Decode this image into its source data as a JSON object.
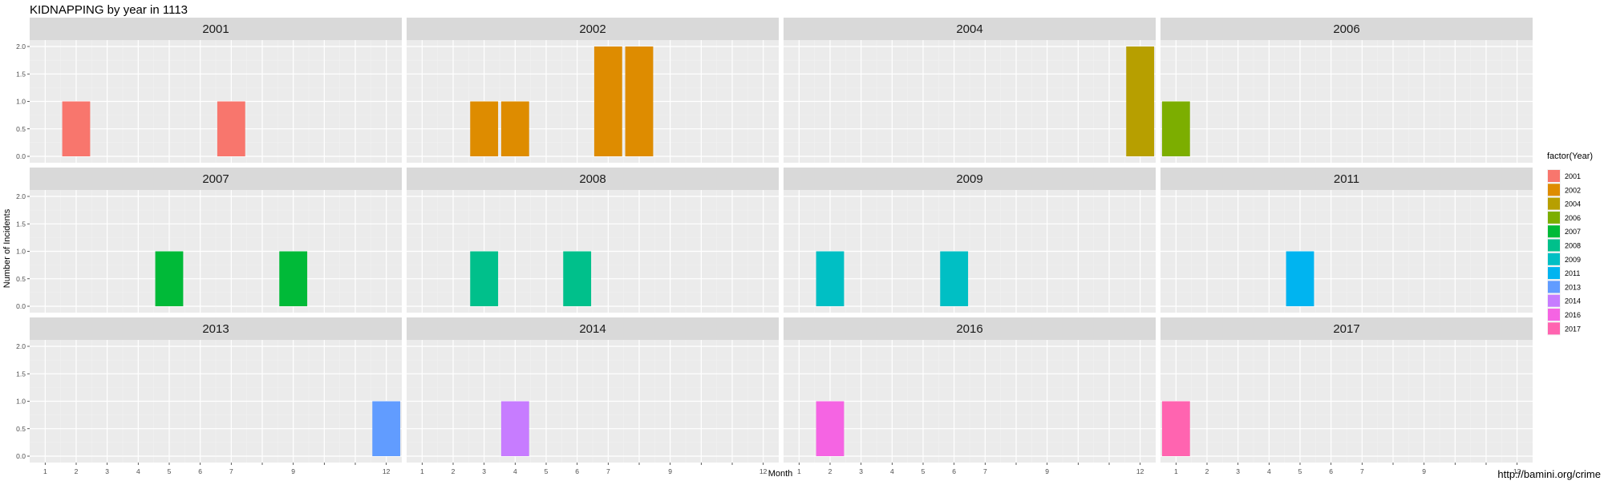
{
  "chart_data": {
    "type": "bar",
    "title": "KIDNAPPING by year in 1113",
    "xlabel": "Month",
    "ylabel": "Number of Incidents",
    "caption": "http://bamini.org/crime",
    "x_ticks": [
      1,
      2,
      3,
      4,
      5,
      6,
      7,
      8,
      9,
      10,
      11,
      12
    ],
    "x_tick_labels": [
      "1",
      "2",
      "3",
      "4",
      "5",
      "6",
      "7",
      "9",
      "12"
    ],
    "x_tick_label_months": [
      1,
      2,
      3,
      4,
      5,
      6,
      7,
      9,
      12
    ],
    "xlim": [
      0.5,
      12.5
    ],
    "y_ticks": [
      0,
      0.5,
      1,
      1.5,
      2
    ],
    "y_tick_labels": [
      "0.0",
      "0.5",
      "1.0",
      "1.5",
      "2.0"
    ],
    "ylim": [
      0,
      2
    ],
    "grid": true,
    "facet_columns": 4,
    "legend": {
      "title": "factor(Year)",
      "placement": "right",
      "entries": [
        {
          "label": "2001",
          "color": "#F8766D"
        },
        {
          "label": "2002",
          "color": "#DE8C00"
        },
        {
          "label": "2004",
          "color": "#B79F00"
        },
        {
          "label": "2006",
          "color": "#7CAE00"
        },
        {
          "label": "2007",
          "color": "#00BA38"
        },
        {
          "label": "2008",
          "color": "#00C08B"
        },
        {
          "label": "2009",
          "color": "#00BFC4"
        },
        {
          "label": "2011",
          "color": "#00B4F0"
        },
        {
          "label": "2013",
          "color": "#619CFF"
        },
        {
          "label": "2014",
          "color": "#C77CFF"
        },
        {
          "label": "2016",
          "color": "#F564E3"
        },
        {
          "label": "2017",
          "color": "#FF64B0"
        }
      ]
    },
    "facets": [
      {
        "year": "2001",
        "color": "#F8766D",
        "bars": [
          {
            "month": 2,
            "value": 1
          },
          {
            "month": 7,
            "value": 1
          }
        ]
      },
      {
        "year": "2002",
        "color": "#DE8C00",
        "bars": [
          {
            "month": 3,
            "value": 1
          },
          {
            "month": 4,
            "value": 1
          },
          {
            "month": 7,
            "value": 2
          },
          {
            "month": 8,
            "value": 2
          }
        ]
      },
      {
        "year": "2004",
        "color": "#B79F00",
        "bars": [
          {
            "month": 12,
            "value": 2
          }
        ]
      },
      {
        "year": "2006",
        "color": "#7CAE00",
        "bars": [
          {
            "month": 1,
            "value": 1
          }
        ]
      },
      {
        "year": "2007",
        "color": "#00BA38",
        "bars": [
          {
            "month": 5,
            "value": 1
          },
          {
            "month": 9,
            "value": 1
          }
        ]
      },
      {
        "year": "2008",
        "color": "#00C08B",
        "bars": [
          {
            "month": 3,
            "value": 1
          },
          {
            "month": 6,
            "value": 1
          }
        ]
      },
      {
        "year": "2009",
        "color": "#00BFC4",
        "bars": [
          {
            "month": 2,
            "value": 1
          },
          {
            "month": 6,
            "value": 1
          }
        ]
      },
      {
        "year": "2011",
        "color": "#00B4F0",
        "bars": [
          {
            "month": 5,
            "value": 1
          }
        ]
      },
      {
        "year": "2013",
        "color": "#619CFF",
        "bars": [
          {
            "month": 12,
            "value": 1
          }
        ]
      },
      {
        "year": "2014",
        "color": "#C77CFF",
        "bars": [
          {
            "month": 4,
            "value": 1
          }
        ]
      },
      {
        "year": "2016",
        "color": "#F564E3",
        "bars": [
          {
            "month": 2,
            "value": 1
          }
        ]
      },
      {
        "year": "2017",
        "color": "#FF64B0",
        "bars": [
          {
            "month": 1,
            "value": 1
          }
        ]
      }
    ]
  }
}
